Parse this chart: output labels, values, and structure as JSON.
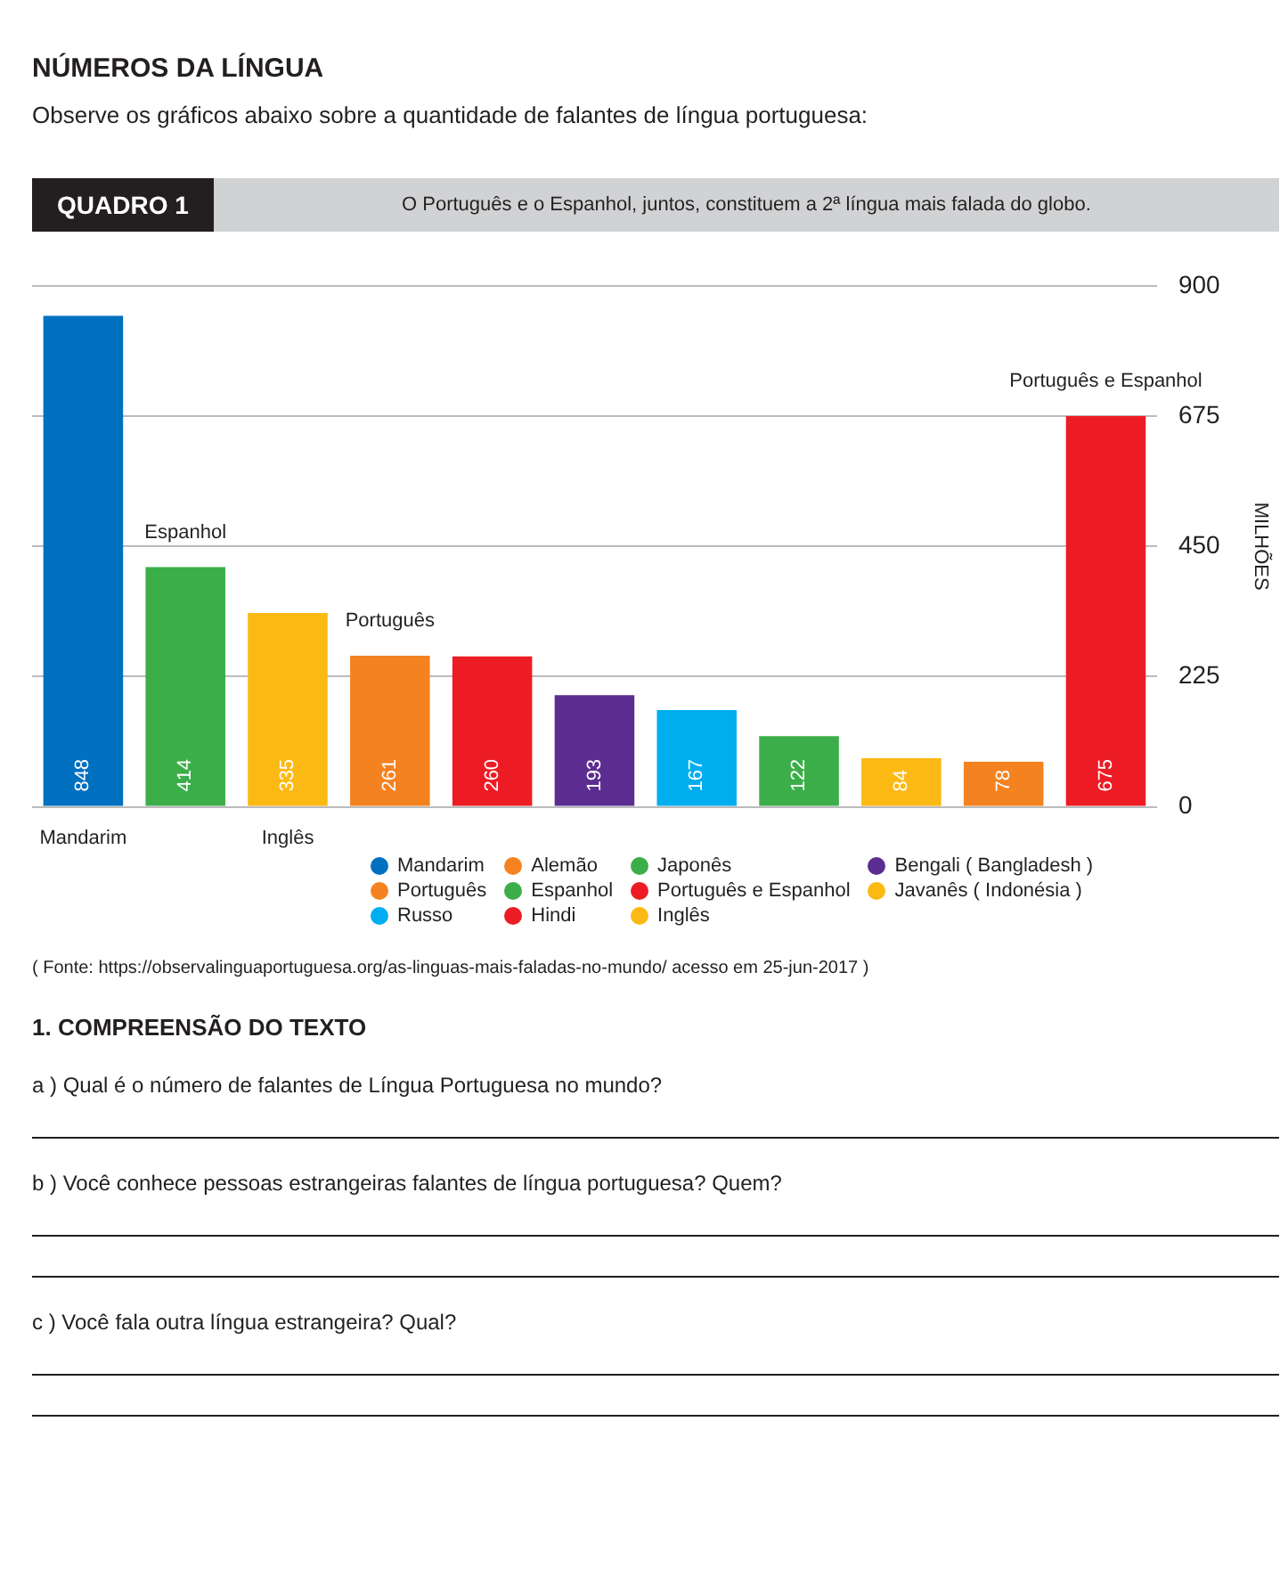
{
  "chart_data": {
    "type": "bar",
    "title": "NÚMEROS DA LÍNGUA",
    "subtitle": "Observe os gráficos abaixo sobre a quantidade de falantes de língua portuguesa:",
    "ylabel": "MILHÕES",
    "categories": [
      "Mandarim",
      "Espanhol",
      "Inglês",
      "Português",
      null,
      null,
      null,
      null,
      null,
      null,
      "Português e Espanhol"
    ],
    "stacked": true,
    "series": [
      {
        "name": "Mandarim",
        "color": "#0070c0",
        "values": [
          848,
          null,
          null,
          null,
          null,
          null,
          null,
          null,
          null,
          null,
          null
        ]
      },
      {
        "name": "Alemão",
        "color": "#f58220",
        "values": [
          null,
          null,
          null,
          null,
          null,
          null,
          null,
          null,
          null,
          78,
          null
        ]
      },
      {
        "name": "Japonês",
        "color": "#3cae49",
        "values": [
          null,
          null,
          null,
          null,
          null,
          null,
          null,
          122,
          null,
          null,
          null
        ]
      },
      {
        "name": "Bengali ( Bangladesh )",
        "color": "#5c2d91",
        "values": [
          null,
          null,
          null,
          null,
          null,
          193,
          null,
          null,
          null,
          null,
          null
        ]
      },
      {
        "name": "Português",
        "color": "#f58220",
        "values": [
          null,
          null,
          null,
          261,
          null,
          null,
          null,
          null,
          null,
          null,
          null
        ]
      },
      {
        "name": "Espanhol",
        "color": "#3cae49",
        "values": [
          null,
          414,
          null,
          null,
          null,
          null,
          null,
          null,
          null,
          null,
          null
        ]
      },
      {
        "name": "Português e Espanhol",
        "color": "#ed1c24",
        "values": [
          null,
          null,
          null,
          null,
          null,
          null,
          null,
          null,
          null,
          null,
          675
        ]
      },
      {
        "name": "Javanês ( Indonésia )",
        "color": "#fdb913",
        "values": [
          null,
          null,
          null,
          null,
          null,
          null,
          null,
          null,
          84,
          null,
          null
        ]
      },
      {
        "name": "Russo",
        "color": "#00aeef",
        "values": [
          null,
          null,
          null,
          null,
          null,
          null,
          167,
          null,
          null,
          null,
          null
        ]
      },
      {
        "name": "Hindi",
        "color": "#ed1c24",
        "values": [
          null,
          null,
          null,
          null,
          260,
          null,
          null,
          null,
          null,
          null,
          null
        ]
      },
      {
        "name": "Inglês",
        "color": "#fdb913",
        "values": [
          null,
          null,
          335,
          null,
          null,
          null,
          null,
          null,
          null,
          null,
          null
        ]
      }
    ],
    "ylim": [
      0,
      900
    ],
    "yticks": [
      0,
      225,
      450,
      675,
      900
    ],
    "grid": "y",
    "legend": "bottom right",
    "data_labels": true,
    "annotations": [
      "QUADRO 1",
      "O Português e o Espanhol, juntos, constituem a 2ª língua mais falada do globo.",
      "( Fonte: https://observalinguaportuguesa.org/as-linguas-mais-faladas-no-mundo/ acesso em 25-jun-2017 )",
      "1. COMPREENSÃO DO TEXTO",
      "a ) Qual é o número de falantes de Língua Portuguesa no mundo?",
      "b ) Você conhece pessoas estrangeiras falantes de língua portuguesa? Quem?",
      "c ) Você fala outra língua estrangeira? Qual?"
    ]
  }
}
